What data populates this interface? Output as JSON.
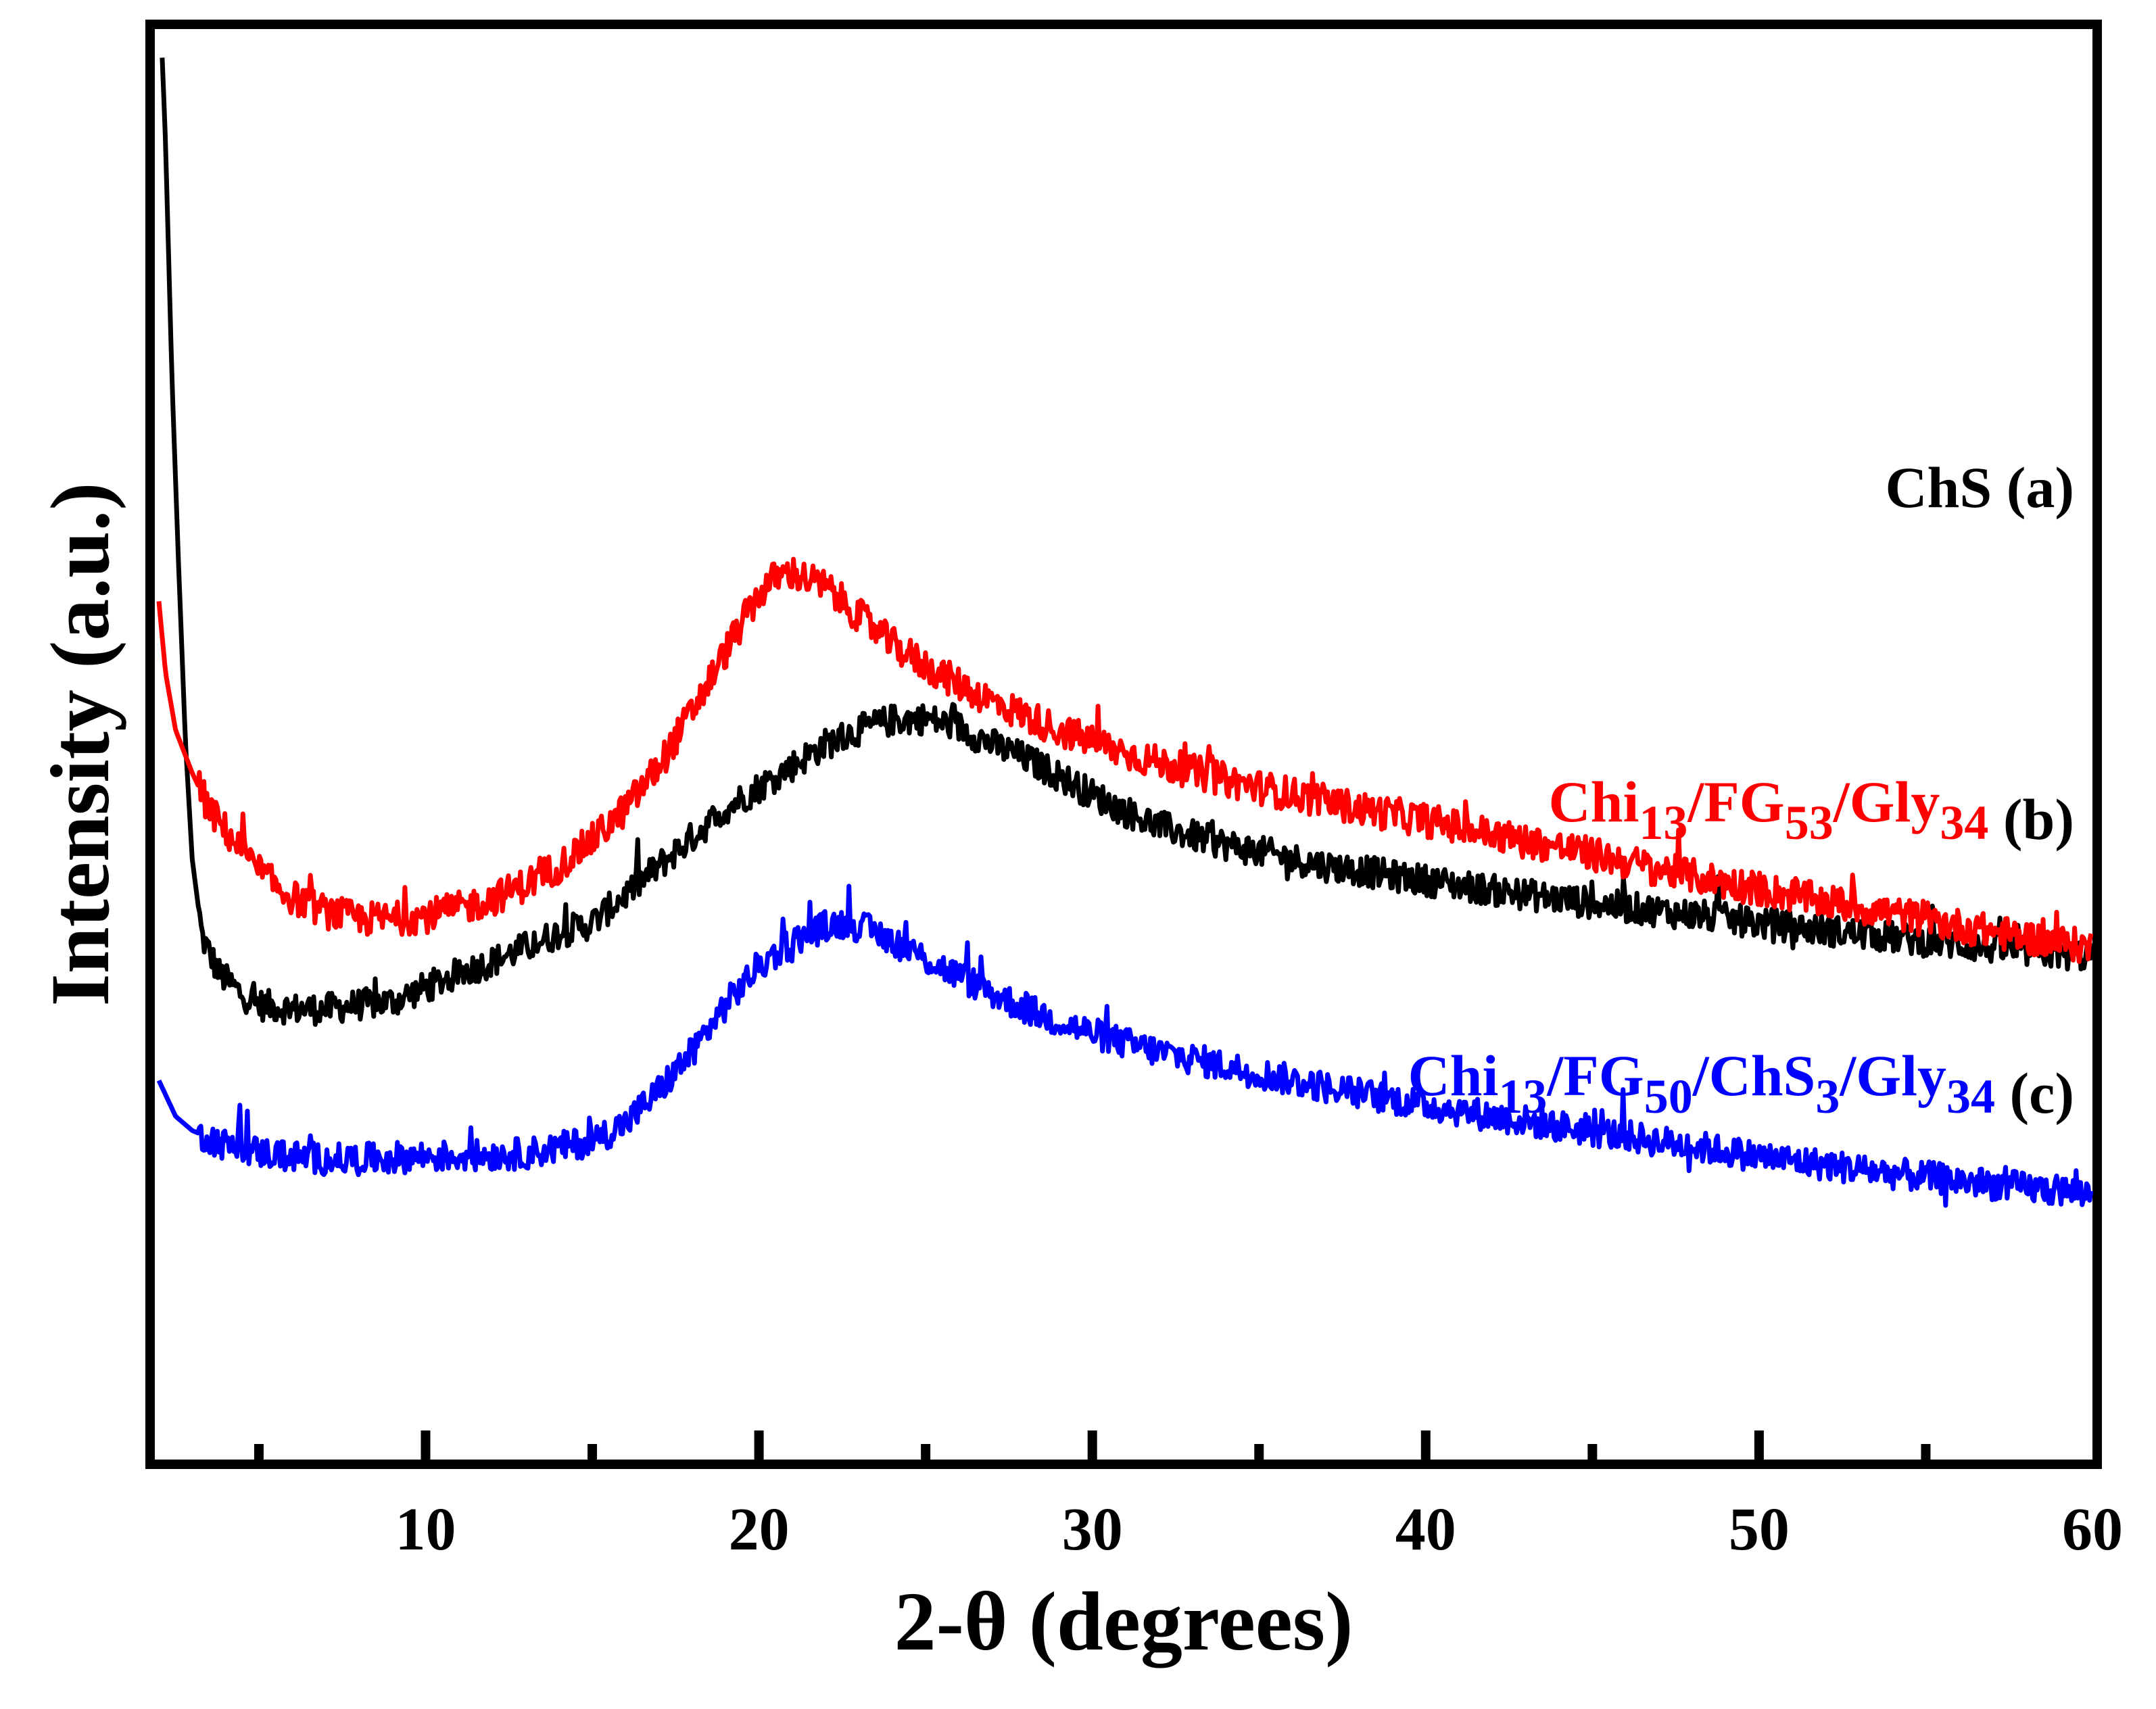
{
  "chart_data": {
    "type": "line",
    "title": "",
    "xlabel": "2-θ (degrees)",
    "ylabel": "Intensity (a.u.)",
    "xlim": [
      2,
      60
    ],
    "ylim": [
      0,
      100
    ],
    "xticks": [
      10,
      20,
      30,
      40,
      50,
      60
    ],
    "minor_xticks": [
      5,
      15,
      25,
      35,
      45,
      55
    ],
    "grid": false,
    "legend": "inline labels at right of each curve",
    "series": [
      {
        "name": "ChS (a)",
        "label": {
          "main": "ChS",
          "suffix": " (a)"
        },
        "color": "#000000",
        "noise": 1.1,
        "points": [
          [
            2.1,
            98
          ],
          [
            2.2,
            92
          ],
          [
            2.4,
            75
          ],
          [
            2.6,
            62
          ],
          [
            2.8,
            50
          ],
          [
            3.0,
            42
          ],
          [
            3.3,
            36.5
          ],
          [
            3.8,
            34
          ],
          [
            4.5,
            32.5
          ],
          [
            5.0,
            31.8
          ],
          [
            6.0,
            31.5
          ],
          [
            7.0,
            31.5
          ],
          [
            8.0,
            31.8
          ],
          [
            9.0,
            32
          ],
          [
            10.0,
            33
          ],
          [
            11.0,
            34
          ],
          [
            12.0,
            34.8
          ],
          [
            13.0,
            35.8
          ],
          [
            14.0,
            36.8
          ],
          [
            15.0,
            37.5
          ],
          [
            16.0,
            39.5
          ],
          [
            17.0,
            41.5
          ],
          [
            18.0,
            43.5
          ],
          [
            19.0,
            45.5
          ],
          [
            20.0,
            47
          ],
          [
            21.0,
            48.5
          ],
          [
            22.0,
            50
          ],
          [
            23.0,
            51
          ],
          [
            24.0,
            51.7
          ],
          [
            25.0,
            51.8
          ],
          [
            26.0,
            51.2
          ],
          [
            27.0,
            50
          ],
          [
            28.0,
            49
          ],
          [
            29.0,
            47.8
          ],
          [
            30.0,
            46.5
          ],
          [
            31.0,
            45.3
          ],
          [
            32.0,
            44.3
          ],
          [
            33.0,
            43.6
          ],
          [
            34.0,
            43
          ],
          [
            35.0,
            42.5
          ],
          [
            36.0,
            42
          ],
          [
            37.0,
            41.5
          ],
          [
            38.0,
            41.2
          ],
          [
            39.0,
            40.8
          ],
          [
            40.0,
            40.5
          ],
          [
            42.0,
            39.8
          ],
          [
            44.0,
            39.2
          ],
          [
            46.0,
            38.6
          ],
          [
            48.0,
            38.1
          ],
          [
            50.0,
            37.5
          ],
          [
            52.0,
            37
          ],
          [
            54.0,
            36.5
          ],
          [
            56.0,
            36
          ],
          [
            58.0,
            35.5
          ],
          [
            60.0,
            35.2
          ]
        ]
      },
      {
        "name": "Chi13/FG53/Gly34 (b)",
        "label": {
          "main": "Chi",
          "subs": [
            [
              "13",
              "/FG"
            ],
            [
              "53",
              "/Gly"
            ],
            [
              "34",
              ""
            ]
          ],
          "suffix": " (b)"
        },
        "color": "#ff0000",
        "noise": 1.2,
        "points": [
          [
            2.0,
            60
          ],
          [
            2.2,
            55
          ],
          [
            2.5,
            51
          ],
          [
            3.0,
            48
          ],
          [
            3.5,
            45.5
          ],
          [
            4.0,
            44
          ],
          [
            5.0,
            41
          ],
          [
            6.0,
            39.3
          ],
          [
            7.0,
            38.3
          ],
          [
            8.0,
            37.8
          ],
          [
            9.0,
            37.8
          ],
          [
            10.0,
            38
          ],
          [
            11.0,
            38.5
          ],
          [
            12.0,
            39.2
          ],
          [
            13.0,
            40.2
          ],
          [
            14.0,
            41.5
          ],
          [
            15.0,
            43.3
          ],
          [
            16.0,
            45.5
          ],
          [
            17.0,
            48.5
          ],
          [
            18.0,
            52.3
          ],
          [
            19.0,
            56.5
          ],
          [
            20.0,
            60.5
          ],
          [
            20.5,
            61.7
          ],
          [
            21.0,
            62
          ],
          [
            22.0,
            61
          ],
          [
            23.0,
            59
          ],
          [
            24.0,
            57
          ],
          [
            25.0,
            55.5
          ],
          [
            26.0,
            54.2
          ],
          [
            27.0,
            53
          ],
          [
            28.0,
            52
          ],
          [
            29.0,
            51
          ],
          [
            30.0,
            50.2
          ],
          [
            31.0,
            49.4
          ],
          [
            32.0,
            48.7
          ],
          [
            33.0,
            48.1
          ],
          [
            34.0,
            47.5
          ],
          [
            35.0,
            47
          ],
          [
            36.0,
            46.5
          ],
          [
            37.0,
            46
          ],
          [
            38.0,
            45.5
          ],
          [
            39.0,
            45.1
          ],
          [
            40.0,
            44.7
          ],
          [
            42.0,
            43.7
          ],
          [
            44.0,
            42.8
          ],
          [
            46.0,
            41.8
          ],
          [
            48.0,
            40.8
          ],
          [
            50.0,
            39.9
          ],
          [
            52.0,
            39
          ],
          [
            54.0,
            38.2
          ],
          [
            56.0,
            37.3
          ],
          [
            58.0,
            36.5
          ],
          [
            60.0,
            35.8
          ]
        ]
      },
      {
        "name": "Chi13/FG50/ChS3/Gly34 (c)",
        "label": {
          "main": "Chi",
          "subs": [
            [
              "13",
              "/FG"
            ],
            [
              "50",
              "/ChS"
            ],
            [
              "3",
              "/Gly"
            ],
            [
              "34",
              ""
            ]
          ],
          "suffix": " (c)"
        },
        "color": "#0000ff",
        "noise": 1.1,
        "points": [
          [
            2.0,
            26.5
          ],
          [
            2.5,
            24
          ],
          [
            3.0,
            23
          ],
          [
            4.0,
            22
          ],
          [
            5.0,
            21.5
          ],
          [
            6.0,
            21.2
          ],
          [
            7.0,
            21
          ],
          [
            8.0,
            21
          ],
          [
            9.0,
            21.1
          ],
          [
            10.0,
            21.2
          ],
          [
            11.0,
            21.2
          ],
          [
            12.0,
            21.3
          ],
          [
            13.0,
            21.4
          ],
          [
            14.0,
            21.8
          ],
          [
            15.0,
            22.3
          ],
          [
            16.0,
            23.5
          ],
          [
            17.0,
            25.8
          ],
          [
            18.0,
            28.5
          ],
          [
            19.0,
            31.8
          ],
          [
            20.0,
            34.5
          ],
          [
            21.0,
            36.2
          ],
          [
            22.0,
            37.3
          ],
          [
            22.5,
            37.5
          ],
          [
            23.0,
            37.3
          ],
          [
            24.0,
            36.3
          ],
          [
            25.0,
            35
          ],
          [
            26.0,
            33.8
          ],
          [
            27.0,
            32.6
          ],
          [
            28.0,
            31.5
          ],
          [
            29.0,
            30.6
          ],
          [
            30.0,
            29.8
          ],
          [
            31.0,
            29.1
          ],
          [
            32.0,
            28.5
          ],
          [
            33.0,
            28
          ],
          [
            34.0,
            27.5
          ],
          [
            35.0,
            27
          ],
          [
            36.0,
            26.5
          ],
          [
            38.0,
            25.6
          ],
          [
            40.0,
            24.8
          ],
          [
            42.0,
            24
          ],
          [
            44.0,
            23.3
          ],
          [
            46.0,
            22.6
          ],
          [
            48.0,
            21.9
          ],
          [
            50.0,
            21.2
          ],
          [
            52.0,
            20.6
          ],
          [
            54.0,
            20
          ],
          [
            56.0,
            19.5
          ],
          [
            58.0,
            19
          ],
          [
            60.0,
            18.6
          ]
        ]
      }
    ]
  }
}
